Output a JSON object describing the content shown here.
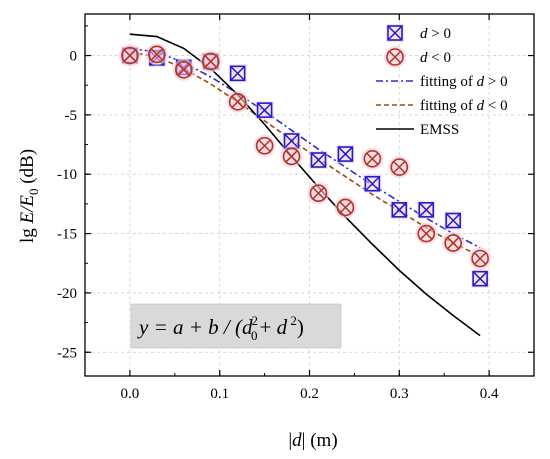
{
  "chart_data": {
    "type": "scatter",
    "x_axis": {
      "label_prefix": "|",
      "label_var": "d",
      "label_suffix": "| (m)",
      "range": [
        -0.05,
        0.45
      ],
      "ticks": [
        0.0,
        0.1,
        0.2,
        0.3,
        0.4
      ],
      "tick_labels": [
        "0.0",
        "0.1",
        "0.2",
        "0.3",
        "0.4"
      ]
    },
    "y_axis": {
      "label_prefix": "lg ",
      "label_var": "E/E",
      "label_sub": "0",
      "label_suffix": " (dB)",
      "range": [
        -27,
        3.5
      ],
      "ticks": [
        0,
        -5,
        -10,
        -15,
        -20,
        -25
      ],
      "tick_labels": [
        "0",
        "-5",
        "-10",
        "-15",
        "-20",
        "-25"
      ]
    },
    "grid": true,
    "legend_position": "top-right",
    "series": [
      {
        "name": "d > 0",
        "kind": "markers",
        "marker": "boxed-x",
        "color": "#1f1fcc",
        "x": [
          0.0,
          0.03,
          0.06,
          0.09,
          0.12,
          0.15,
          0.18,
          0.21,
          0.24,
          0.27,
          0.3,
          0.33,
          0.36,
          0.39
        ],
        "y": [
          0.0,
          -0.2,
          -1.0,
          -0.5,
          -1.5,
          -4.6,
          -7.2,
          -8.8,
          -8.3,
          -10.8,
          -13.0,
          -13.0,
          -13.9,
          -18.8
        ]
      },
      {
        "name": "d < 0",
        "kind": "markers",
        "marker": "circled-x",
        "color": "#b5341f",
        "x": [
          0.0,
          0.03,
          0.06,
          0.09,
          0.12,
          0.15,
          0.18,
          0.21,
          0.24,
          0.27,
          0.3,
          0.33,
          0.36,
          0.39
        ],
        "y": [
          0.0,
          0.1,
          -1.2,
          -0.5,
          -3.9,
          -7.6,
          -8.5,
          -11.6,
          -12.8,
          -8.7,
          -9.4,
          -15.0,
          -15.8,
          -17.1
        ]
      },
      {
        "name": "fitting of d > 0",
        "kind": "line",
        "style": "dash-dot",
        "color": "#2a2ae0",
        "x": [
          0.0,
          0.03,
          0.06,
          0.09,
          0.12,
          0.15,
          0.18,
          0.21,
          0.24,
          0.27,
          0.3,
          0.33,
          0.36,
          0.39
        ],
        "y": [
          0.6,
          0.3,
          -0.6,
          -1.8,
          -3.2,
          -4.7,
          -6.3,
          -7.9,
          -9.4,
          -10.9,
          -12.3,
          -13.7,
          -15.0,
          -16.2
        ]
      },
      {
        "name": "fitting of d < 0",
        "kind": "line",
        "style": "dashed",
        "color": "#9a4b10",
        "x": [
          0.0,
          0.03,
          0.06,
          0.09,
          0.12,
          0.15,
          0.18,
          0.21,
          0.24,
          0.27,
          0.3,
          0.33,
          0.36,
          0.39
        ],
        "y": [
          0.3,
          -0.1,
          -1.1,
          -2.4,
          -3.9,
          -5.5,
          -7.1,
          -8.7,
          -10.2,
          -11.7,
          -13.1,
          -14.5,
          -15.8,
          -16.9
        ]
      },
      {
        "name": "EMSS",
        "kind": "line",
        "style": "solid",
        "color": "#000000",
        "x": [
          0.0,
          0.03,
          0.06,
          0.09,
          0.12,
          0.15,
          0.18,
          0.21,
          0.24,
          0.27,
          0.3,
          0.33,
          0.36,
          0.39
        ],
        "y": [
          1.8,
          1.6,
          0.6,
          -1.1,
          -3.3,
          -5.8,
          -8.5,
          -11.1,
          -13.6,
          -15.9,
          -18.1,
          -20.1,
          -21.9,
          -23.6
        ]
      }
    ],
    "legend": [
      {
        "label_var": "d",
        "label_rest": " > 0"
      },
      {
        "label_var": "d",
        "label_rest": " < 0"
      },
      {
        "label_plain": "fitting of ",
        "label_var": "d",
        "label_rest": " > 0"
      },
      {
        "label_plain": "fitting of ",
        "label_var": "d",
        "label_rest": " < 0"
      },
      {
        "label_plain": "EMSS"
      }
    ],
    "annotation": {
      "text_lhs": "y = a + b / (",
      "text_d0": "d",
      "text_d0_sub": "0",
      "text_d0_sup": "2",
      "text_plus": "+ ",
      "text_d": "d",
      "text_d_sup": " 2",
      "text_close": ")",
      "background": "#d9d9d9"
    }
  }
}
